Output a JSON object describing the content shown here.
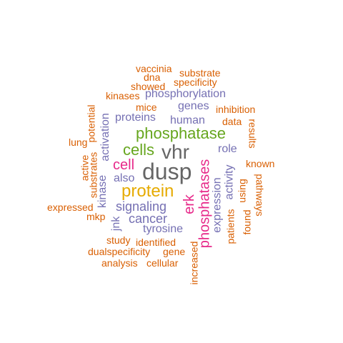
{
  "colors": {
    "orange": "#D95F02",
    "purple": "#7570B3",
    "magenta": "#E7298A",
    "green": "#66A61E",
    "gold": "#E6AB02",
    "gray": "#666666"
  },
  "words": [
    {
      "text": "vaccinia",
      "color": "orange"
    },
    {
      "text": "dna",
      "color": "orange"
    },
    {
      "text": "substrate",
      "color": "orange"
    },
    {
      "text": "showed",
      "color": "orange"
    },
    {
      "text": "specificity",
      "color": "orange"
    },
    {
      "text": "kinases",
      "color": "orange"
    },
    {
      "text": "phosphorylation",
      "color": "purple"
    },
    {
      "text": "potential",
      "color": "orange"
    },
    {
      "text": "mice",
      "color": "orange"
    },
    {
      "text": "genes",
      "color": "purple"
    },
    {
      "text": "inhibition",
      "color": "orange"
    },
    {
      "text": "proteins",
      "color": "purple"
    },
    {
      "text": "human",
      "color": "purple"
    },
    {
      "text": "data",
      "color": "orange"
    },
    {
      "text": "results",
      "color": "orange"
    },
    {
      "text": "activation",
      "color": "purple"
    },
    {
      "text": "phosphatase",
      "color": "green"
    },
    {
      "text": "lung",
      "color": "orange"
    },
    {
      "text": "cells",
      "color": "green"
    },
    {
      "text": "vhr",
      "color": "gray"
    },
    {
      "text": "role",
      "color": "purple"
    },
    {
      "text": "active",
      "color": "orange"
    },
    {
      "text": "substrates",
      "color": "orange"
    },
    {
      "text": "cell",
      "color": "magenta"
    },
    {
      "text": "known",
      "color": "orange"
    },
    {
      "text": "dusp",
      "color": "gray"
    },
    {
      "text": "phosphatases",
      "color": "magenta"
    },
    {
      "text": "also",
      "color": "purple"
    },
    {
      "text": "kinase",
      "color": "purple"
    },
    {
      "text": "protein",
      "color": "gold"
    },
    {
      "text": "activity",
      "color": "purple"
    },
    {
      "text": "using",
      "color": "orange"
    },
    {
      "text": "expression",
      "color": "purple"
    },
    {
      "text": "pathways",
      "color": "orange"
    },
    {
      "text": "expressed",
      "color": "orange"
    },
    {
      "text": "signaling",
      "color": "purple"
    },
    {
      "text": "erk",
      "color": "magenta"
    },
    {
      "text": "mkp",
      "color": "orange"
    },
    {
      "text": "cancer",
      "color": "purple"
    },
    {
      "text": "jnk",
      "color": "purple"
    },
    {
      "text": "patients",
      "color": "orange"
    },
    {
      "text": "found",
      "color": "orange"
    },
    {
      "text": "tyrosine",
      "color": "purple"
    },
    {
      "text": "study",
      "color": "orange"
    },
    {
      "text": "identified",
      "color": "orange"
    },
    {
      "text": "dualspecificity",
      "color": "orange"
    },
    {
      "text": "gene",
      "color": "orange"
    },
    {
      "text": "increased",
      "color": "orange"
    },
    {
      "text": "analysis",
      "color": "orange"
    },
    {
      "text": "cellular",
      "color": "orange"
    }
  ]
}
